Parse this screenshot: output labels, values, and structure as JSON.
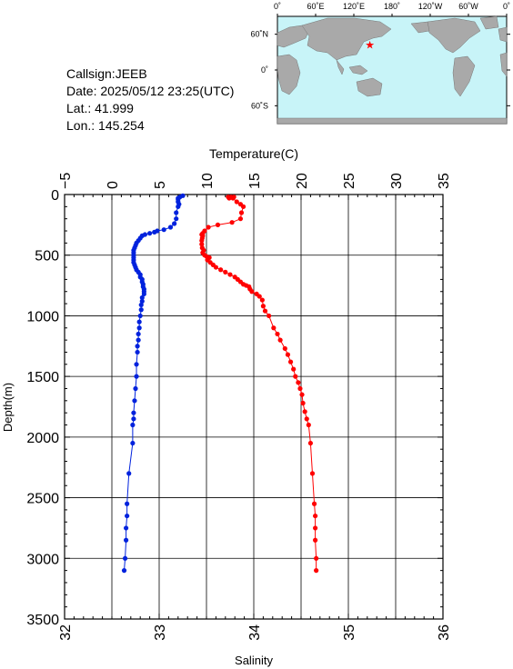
{
  "station": {
    "callsign": "Callsign:JEEB",
    "date": "Date:  2025/05/12 23:25(UTC)",
    "lat": "Lat.:  41.999",
    "lon": "Lon.:  145.254"
  },
  "map": {
    "lon_labels": [
      "0˚",
      "60˚E",
      "120˚E",
      "180˚",
      "120˚W",
      "60˚W",
      "0˚"
    ],
    "lat_labels": [
      "60˚N",
      "0˚",
      "60˚S"
    ],
    "marker": {
      "lon": 145.254,
      "lat": 41.999
    },
    "ocean_color": "#c8f4f8",
    "land_color": "#a9a9a9",
    "marker_color": "#ff0000"
  },
  "chart_data": {
    "type": "scatter",
    "ylabel": "Depth(m)",
    "ylim": [
      0,
      3500
    ],
    "y_inverted": true,
    "yticks": [
      "0",
      "500",
      "1000",
      "1500",
      "2000",
      "2500",
      "3000",
      "3500"
    ],
    "x_top": {
      "label": "Temperature(C)",
      "lim": [
        -5,
        35
      ],
      "ticks": [
        "−5",
        "0",
        "5",
        "10",
        "15",
        "20",
        "25",
        "30",
        "35"
      ]
    },
    "x_bottom": {
      "label": "Salinity",
      "lim": [
        32,
        36
      ],
      "ticks": [
        "32",
        "33",
        "34",
        "35",
        "36"
      ]
    },
    "grid": true,
    "series": [
      {
        "axis": "salinity",
        "color": "#0022dd",
        "points": [
          [
            33.25,
            10
          ],
          [
            33.22,
            20
          ],
          [
            33.2,
            30
          ],
          [
            33.2,
            40
          ],
          [
            33.2,
            60
          ],
          [
            33.21,
            80
          ],
          [
            33.2,
            100
          ],
          [
            33.18,
            150
          ],
          [
            33.18,
            200
          ],
          [
            33.16,
            240
          ],
          [
            33.12,
            270
          ],
          [
            33.05,
            290
          ],
          [
            32.98,
            300
          ],
          [
            32.95,
            310
          ],
          [
            32.9,
            320
          ],
          [
            32.85,
            330
          ],
          [
            32.82,
            340
          ],
          [
            32.8,
            360
          ],
          [
            32.78,
            380
          ],
          [
            32.76,
            400
          ],
          [
            32.75,
            420
          ],
          [
            32.74,
            440
          ],
          [
            32.73,
            460
          ],
          [
            32.73,
            480
          ],
          [
            32.73,
            500
          ],
          [
            32.73,
            520
          ],
          [
            32.73,
            540
          ],
          [
            32.73,
            560
          ],
          [
            32.74,
            580
          ],
          [
            32.75,
            600
          ],
          [
            32.76,
            620
          ],
          [
            32.78,
            640
          ],
          [
            32.8,
            660
          ],
          [
            32.8,
            680
          ],
          [
            32.82,
            700
          ],
          [
            32.82,
            720
          ],
          [
            32.83,
            740
          ],
          [
            32.83,
            760
          ],
          [
            32.84,
            780
          ],
          [
            32.84,
            800
          ],
          [
            32.84,
            820
          ],
          [
            32.82,
            850
          ],
          [
            32.82,
            880
          ],
          [
            32.81,
            910
          ],
          [
            32.81,
            950
          ],
          [
            32.8,
            1000
          ],
          [
            32.79,
            1050
          ],
          [
            32.79,
            1100
          ],
          [
            32.78,
            1150
          ],
          [
            32.78,
            1200
          ],
          [
            32.77,
            1250
          ],
          [
            32.77,
            1300
          ],
          [
            32.76,
            1400
          ],
          [
            32.76,
            1500
          ],
          [
            32.75,
            1600
          ],
          [
            32.74,
            1700
          ],
          [
            32.73,
            1800
          ],
          [
            32.73,
            1850
          ],
          [
            32.72,
            1900
          ],
          [
            32.72,
            2050
          ],
          [
            32.68,
            2300
          ],
          [
            32.66,
            2550
          ],
          [
            32.66,
            2650
          ],
          [
            32.65,
            2750
          ],
          [
            32.65,
            2850
          ],
          [
            32.64,
            3000
          ],
          [
            32.63,
            3100
          ]
        ]
      },
      {
        "axis": "temperature",
        "color": "#ff0000",
        "points": [
          [
            12.3,
            20
          ],
          [
            12.6,
            20
          ],
          [
            12.9,
            20
          ],
          [
            12.4,
            30
          ],
          [
            12.8,
            30
          ],
          [
            13.2,
            60
          ],
          [
            13.6,
            80
          ],
          [
            13.9,
            100
          ],
          [
            13.7,
            150
          ],
          [
            13.6,
            200
          ],
          [
            12.7,
            230
          ],
          [
            11.2,
            250
          ],
          [
            10.2,
            270
          ],
          [
            9.8,
            300
          ],
          [
            9.6,
            320
          ],
          [
            9.5,
            330
          ],
          [
            9.6,
            340
          ],
          [
            9.55,
            360
          ],
          [
            9.5,
            380
          ],
          [
            9.5,
            410
          ],
          [
            9.55,
            440
          ],
          [
            9.7,
            460
          ],
          [
            9.6,
            480
          ],
          [
            9.8,
            500
          ],
          [
            10.0,
            510
          ],
          [
            10.3,
            520
          ],
          [
            10.1,
            540
          ],
          [
            10.4,
            560
          ],
          [
            10.7,
            580
          ],
          [
            11.0,
            600
          ],
          [
            11.5,
            620
          ],
          [
            12.0,
            640
          ],
          [
            12.5,
            660
          ],
          [
            13.0,
            680
          ],
          [
            13.3,
            700
          ],
          [
            13.6,
            720
          ],
          [
            13.9,
            740
          ],
          [
            14.2,
            750
          ],
          [
            14.5,
            760
          ],
          [
            14.6,
            780
          ],
          [
            14.8,
            800
          ],
          [
            15.3,
            820
          ],
          [
            15.6,
            840
          ],
          [
            15.9,
            870
          ],
          [
            16.0,
            920
          ],
          [
            16.2,
            960
          ],
          [
            16.6,
            1000
          ],
          [
            17.1,
            1100
          ],
          [
            17.5,
            1150
          ],
          [
            17.8,
            1200
          ],
          [
            18.3,
            1270
          ],
          [
            18.6,
            1320
          ],
          [
            18.9,
            1380
          ],
          [
            19.2,
            1440
          ],
          [
            19.4,
            1500
          ],
          [
            19.7,
            1550
          ],
          [
            19.9,
            1600
          ],
          [
            20.1,
            1650
          ],
          [
            20.2,
            1720
          ],
          [
            20.4,
            1790
          ],
          [
            20.6,
            1850
          ],
          [
            20.8,
            1900
          ],
          [
            21.0,
            2050
          ],
          [
            21.2,
            2300
          ],
          [
            21.4,
            2550
          ],
          [
            21.5,
            2650
          ],
          [
            21.5,
            2750
          ],
          [
            21.5,
            2850
          ],
          [
            21.6,
            3000
          ],
          [
            21.6,
            3100
          ]
        ]
      }
    ]
  }
}
